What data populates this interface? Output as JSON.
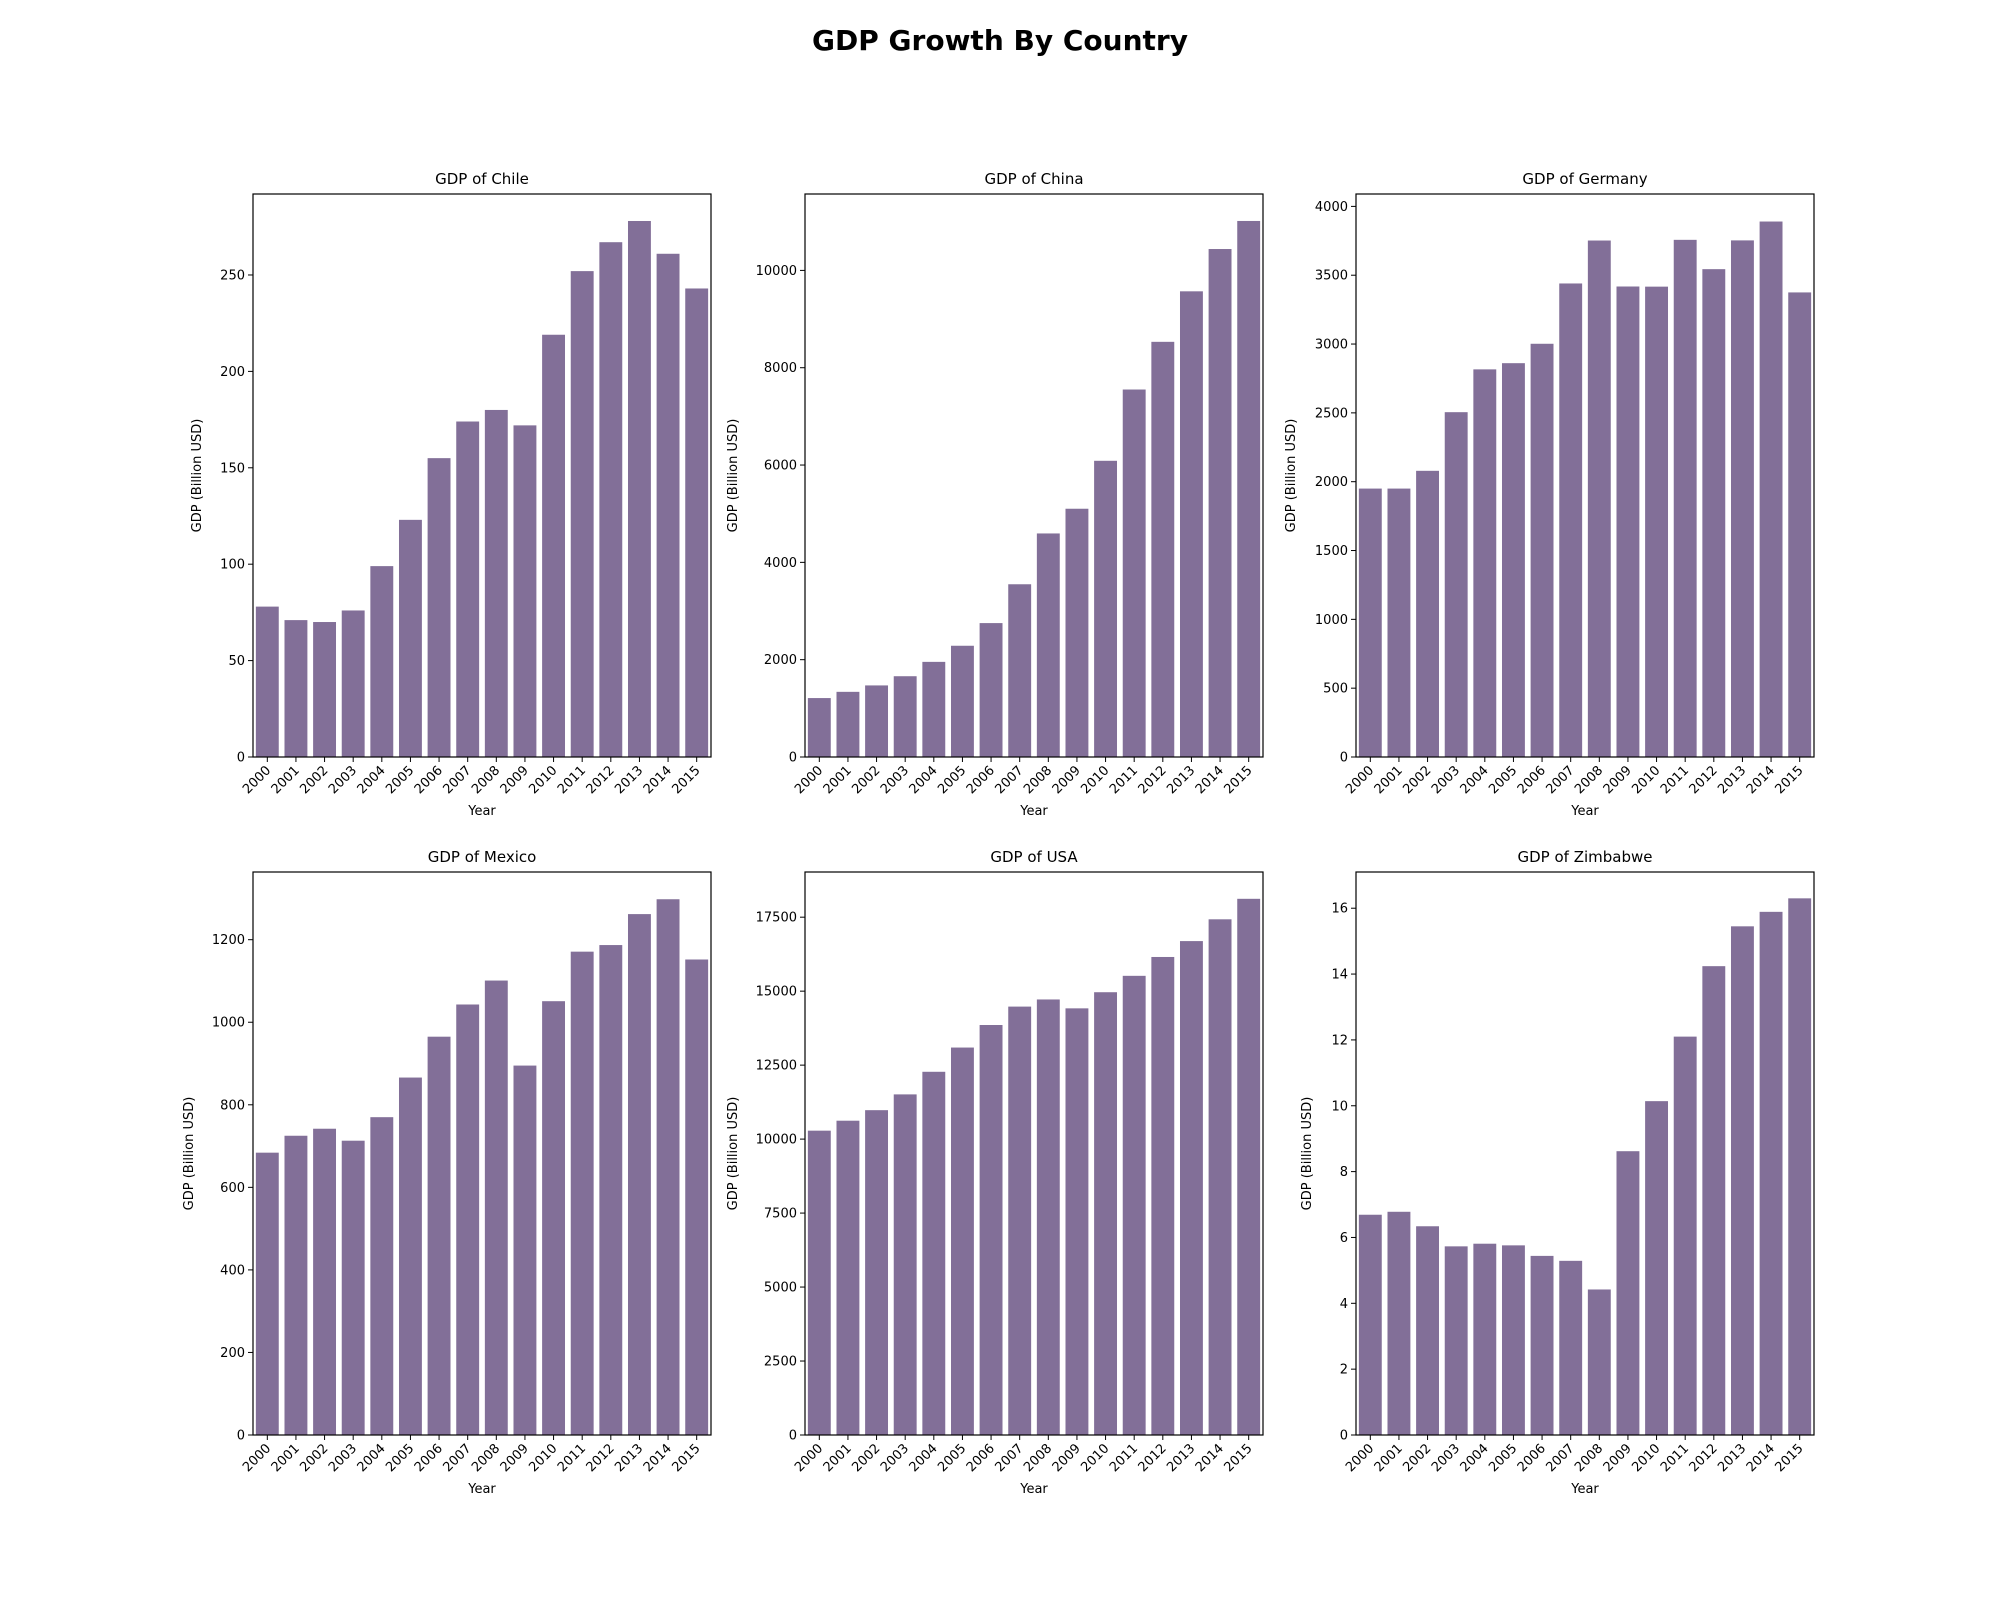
{
  "figure": {
    "title": "GDP Growth By Country"
  },
  "colors": {
    "bar": "#826f98",
    "axis": "#000000"
  },
  "chart_data": [
    {
      "type": "bar",
      "title": "GDP of Chile",
      "xlabel": "Year",
      "ylabel": "GDP (Billion USD)",
      "categories": [
        "2000",
        "2001",
        "2002",
        "2003",
        "2004",
        "2005",
        "2006",
        "2007",
        "2008",
        "2009",
        "2010",
        "2011",
        "2012",
        "2013",
        "2014",
        "2015"
      ],
      "values": [
        78,
        71,
        70,
        76,
        99,
        123,
        155,
        174,
        180,
        172,
        219,
        252,
        267,
        278,
        261,
        243
      ],
      "ylim": [
        0,
        292
      ],
      "yticks": [
        0,
        50,
        100,
        150,
        200,
        250
      ],
      "ytick_labels": [
        "0",
        "50",
        "100",
        "150",
        "200",
        "250"
      ]
    },
    {
      "type": "bar",
      "title": "GDP of China",
      "xlabel": "Year",
      "ylabel": "GDP (Billion USD)",
      "categories": [
        "2000",
        "2001",
        "2002",
        "2003",
        "2004",
        "2005",
        "2006",
        "2007",
        "2008",
        "2009",
        "2010",
        "2011",
        "2012",
        "2013",
        "2014",
        "2015"
      ],
      "values": [
        1211,
        1339,
        1471,
        1660,
        1955,
        2286,
        2752,
        3550,
        4594,
        5102,
        6087,
        7552,
        8532,
        9570,
        10439,
        11016
      ],
      "ylim": [
        0,
        11570
      ],
      "yticks": [
        0,
        2000,
        4000,
        6000,
        8000,
        10000
      ],
      "ytick_labels": [
        "0",
        "2000",
        "4000",
        "6000",
        "8000",
        "10000"
      ]
    },
    {
      "type": "bar",
      "title": "GDP of Germany",
      "xlabel": "Year",
      "ylabel": "GDP (Billion USD)",
      "categories": [
        "2000",
        "2001",
        "2002",
        "2003",
        "2004",
        "2005",
        "2006",
        "2007",
        "2008",
        "2009",
        "2010",
        "2011",
        "2012",
        "2013",
        "2014",
        "2015"
      ],
      "values": [
        1950,
        1950,
        2079,
        2505,
        2816,
        2861,
        3002,
        3440,
        3752,
        3418,
        3417,
        3757,
        3544,
        3753,
        3890,
        3375
      ],
      "ylim": [
        0,
        4090
      ],
      "yticks": [
        0,
        500,
        1000,
        1500,
        2000,
        2500,
        3000,
        3500,
        4000
      ],
      "ytick_labels": [
        "0",
        "500",
        "1000",
        "1500",
        "2000",
        "2500",
        "3000",
        "3500",
        "4000"
      ]
    },
    {
      "type": "bar",
      "title": "GDP of Mexico",
      "xlabel": "Year",
      "ylabel": "GDP (Billion USD)",
      "categories": [
        "2000",
        "2001",
        "2002",
        "2003",
        "2004",
        "2005",
        "2006",
        "2007",
        "2008",
        "2009",
        "2010",
        "2011",
        "2012",
        "2013",
        "2014",
        "2015"
      ],
      "values": [
        684,
        725,
        742,
        713,
        770,
        866,
        965,
        1043,
        1101,
        895,
        1051,
        1171,
        1187,
        1262,
        1298,
        1152
      ],
      "ylim": [
        0,
        1364
      ],
      "yticks": [
        0,
        200,
        400,
        600,
        800,
        1000,
        1200
      ],
      "ytick_labels": [
        "0",
        "200",
        "400",
        "600",
        "800",
        "1000",
        "1200"
      ]
    },
    {
      "type": "bar",
      "title": "GDP of USA",
      "xlabel": "Year",
      "ylabel": "GDP (Billion USD)",
      "categories": [
        "2000",
        "2001",
        "2002",
        "2003",
        "2004",
        "2005",
        "2006",
        "2007",
        "2008",
        "2009",
        "2010",
        "2011",
        "2012",
        "2013",
        "2014",
        "2015"
      ],
      "values": [
        10285,
        10622,
        10978,
        11511,
        12275,
        13094,
        13856,
        14478,
        14719,
        14419,
        14964,
        15518,
        16155,
        16692,
        17428,
        18121
      ],
      "ylim": [
        0,
        19027
      ],
      "yticks": [
        0,
        2500,
        5000,
        7500,
        10000,
        12500,
        15000,
        17500
      ],
      "ytick_labels": [
        "0",
        "2500",
        "5000",
        "7500",
        "10000",
        "12500",
        "15000",
        "17500"
      ]
    },
    {
      "type": "bar",
      "title": "GDP of Zimbabwe",
      "xlabel": "Year",
      "ylabel": "GDP (Billion USD)",
      "categories": [
        "2000",
        "2001",
        "2002",
        "2003",
        "2004",
        "2005",
        "2006",
        "2007",
        "2008",
        "2009",
        "2010",
        "2011",
        "2012",
        "2013",
        "2014",
        "2015"
      ],
      "values": [
        6.69,
        6.78,
        6.34,
        5.73,
        5.81,
        5.76,
        5.44,
        5.29,
        4.42,
        8.62,
        10.14,
        12.1,
        14.24,
        15.45,
        15.89,
        16.3
      ],
      "ylim": [
        0,
        17.1
      ],
      "yticks": [
        0,
        2,
        4,
        6,
        8,
        10,
        12,
        14,
        16
      ],
      "ytick_labels": [
        "0",
        "2",
        "4",
        "6",
        "8",
        "10",
        "12",
        "14",
        "16"
      ]
    }
  ]
}
